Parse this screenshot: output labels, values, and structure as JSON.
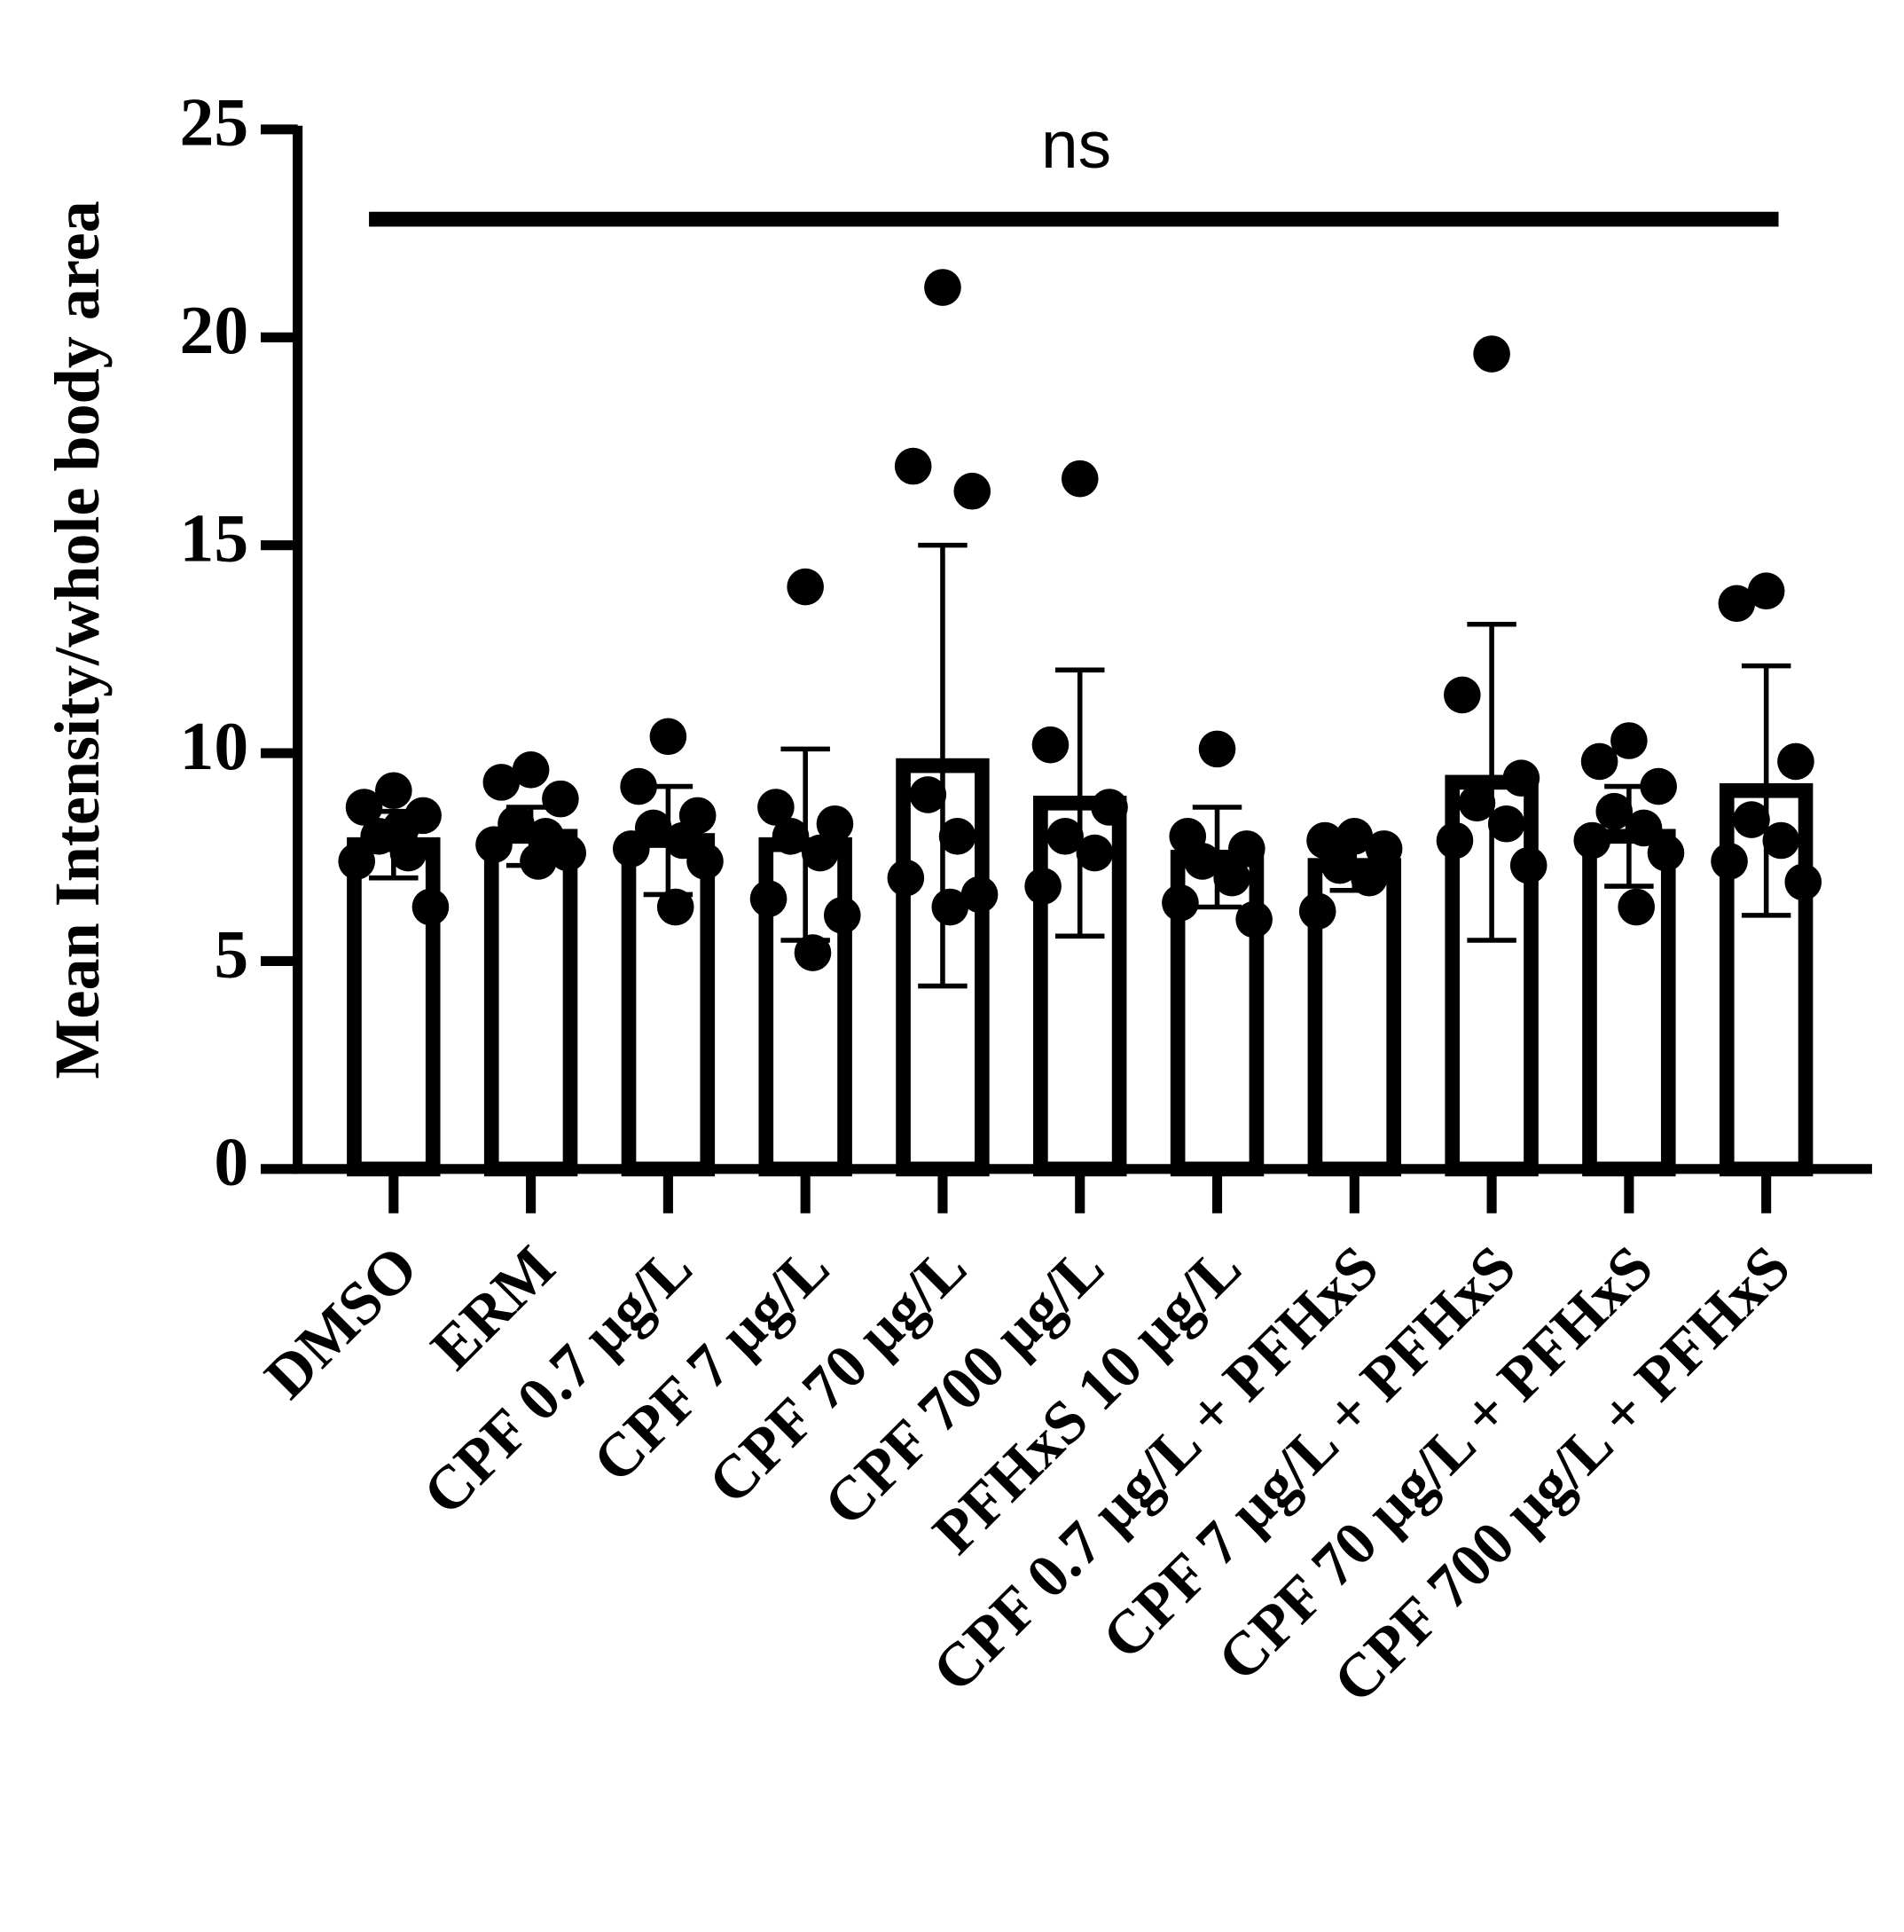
{
  "chart_data": {
    "type": "bar",
    "y_label": "Mean Intensity/whole body area",
    "annotation": "ns",
    "categories": [
      "DMSO",
      "ERM",
      "CPF 0.7 µg/L",
      "CPF 7 µg/L",
      "CPF 70 µg/L",
      "CPF 700 µg/L",
      "PFHxS 10 µg/L",
      "CPF 0.7 µg/L + PFHxS",
      "CPF 7 µg/L + PFHxS",
      "CPF 70 µg/L + PFHxS",
      "CPF 700 µg/L + PFHxS"
    ],
    "values": [
      7.8,
      8.0,
      7.9,
      7.8,
      9.7,
      8.8,
      7.5,
      7.3,
      9.3,
      8.0,
      9.1
    ],
    "errors": [
      0.8,
      0.7,
      1.3,
      2.3,
      5.3,
      3.2,
      1.2,
      0.6,
      3.8,
      1.2,
      3.0
    ],
    "points": [
      [
        9.1,
        8.7,
        8.5,
        8.0,
        7.6,
        7.4,
        6.3,
        8.2
      ],
      [
        9.6,
        9.3,
        8.9,
        8.3,
        8.0,
        7.8,
        7.6,
        7.4
      ],
      [
        10.4,
        9.2,
        8.5,
        8.2,
        7.9,
        7.7,
        7.4,
        6.3
      ],
      [
        14.0,
        8.7,
        8.3,
        8.0,
        7.6,
        6.5,
        6.1,
        5.2
      ],
      [
        21.2,
        16.9,
        16.3,
        9.0,
        8.0,
        7.0,
        6.6,
        6.3
      ],
      [
        16.6,
        10.2,
        8.7,
        8.0,
        7.6,
        6.8
      ],
      [
        10.1,
        8.0,
        7.7,
        7.4,
        7.0,
        6.4,
        6.0
      ],
      [
        8.0,
        7.9,
        7.7,
        7.3,
        7.0,
        6.2
      ],
      [
        19.6,
        11.4,
        9.4,
        8.8,
        8.3,
        7.9,
        7.3
      ],
      [
        10.3,
        9.8,
        9.2,
        8.6,
        8.2,
        7.9,
        7.6,
        6.3
      ],
      [
        13.9,
        13.6,
        9.8,
        8.4,
        7.9,
        7.4,
        6.9
      ]
    ],
    "color": "#000000",
    "ylim": [
      0,
      25
    ],
    "yticks": [
      0,
      5,
      10,
      15,
      20,
      25
    ]
  }
}
